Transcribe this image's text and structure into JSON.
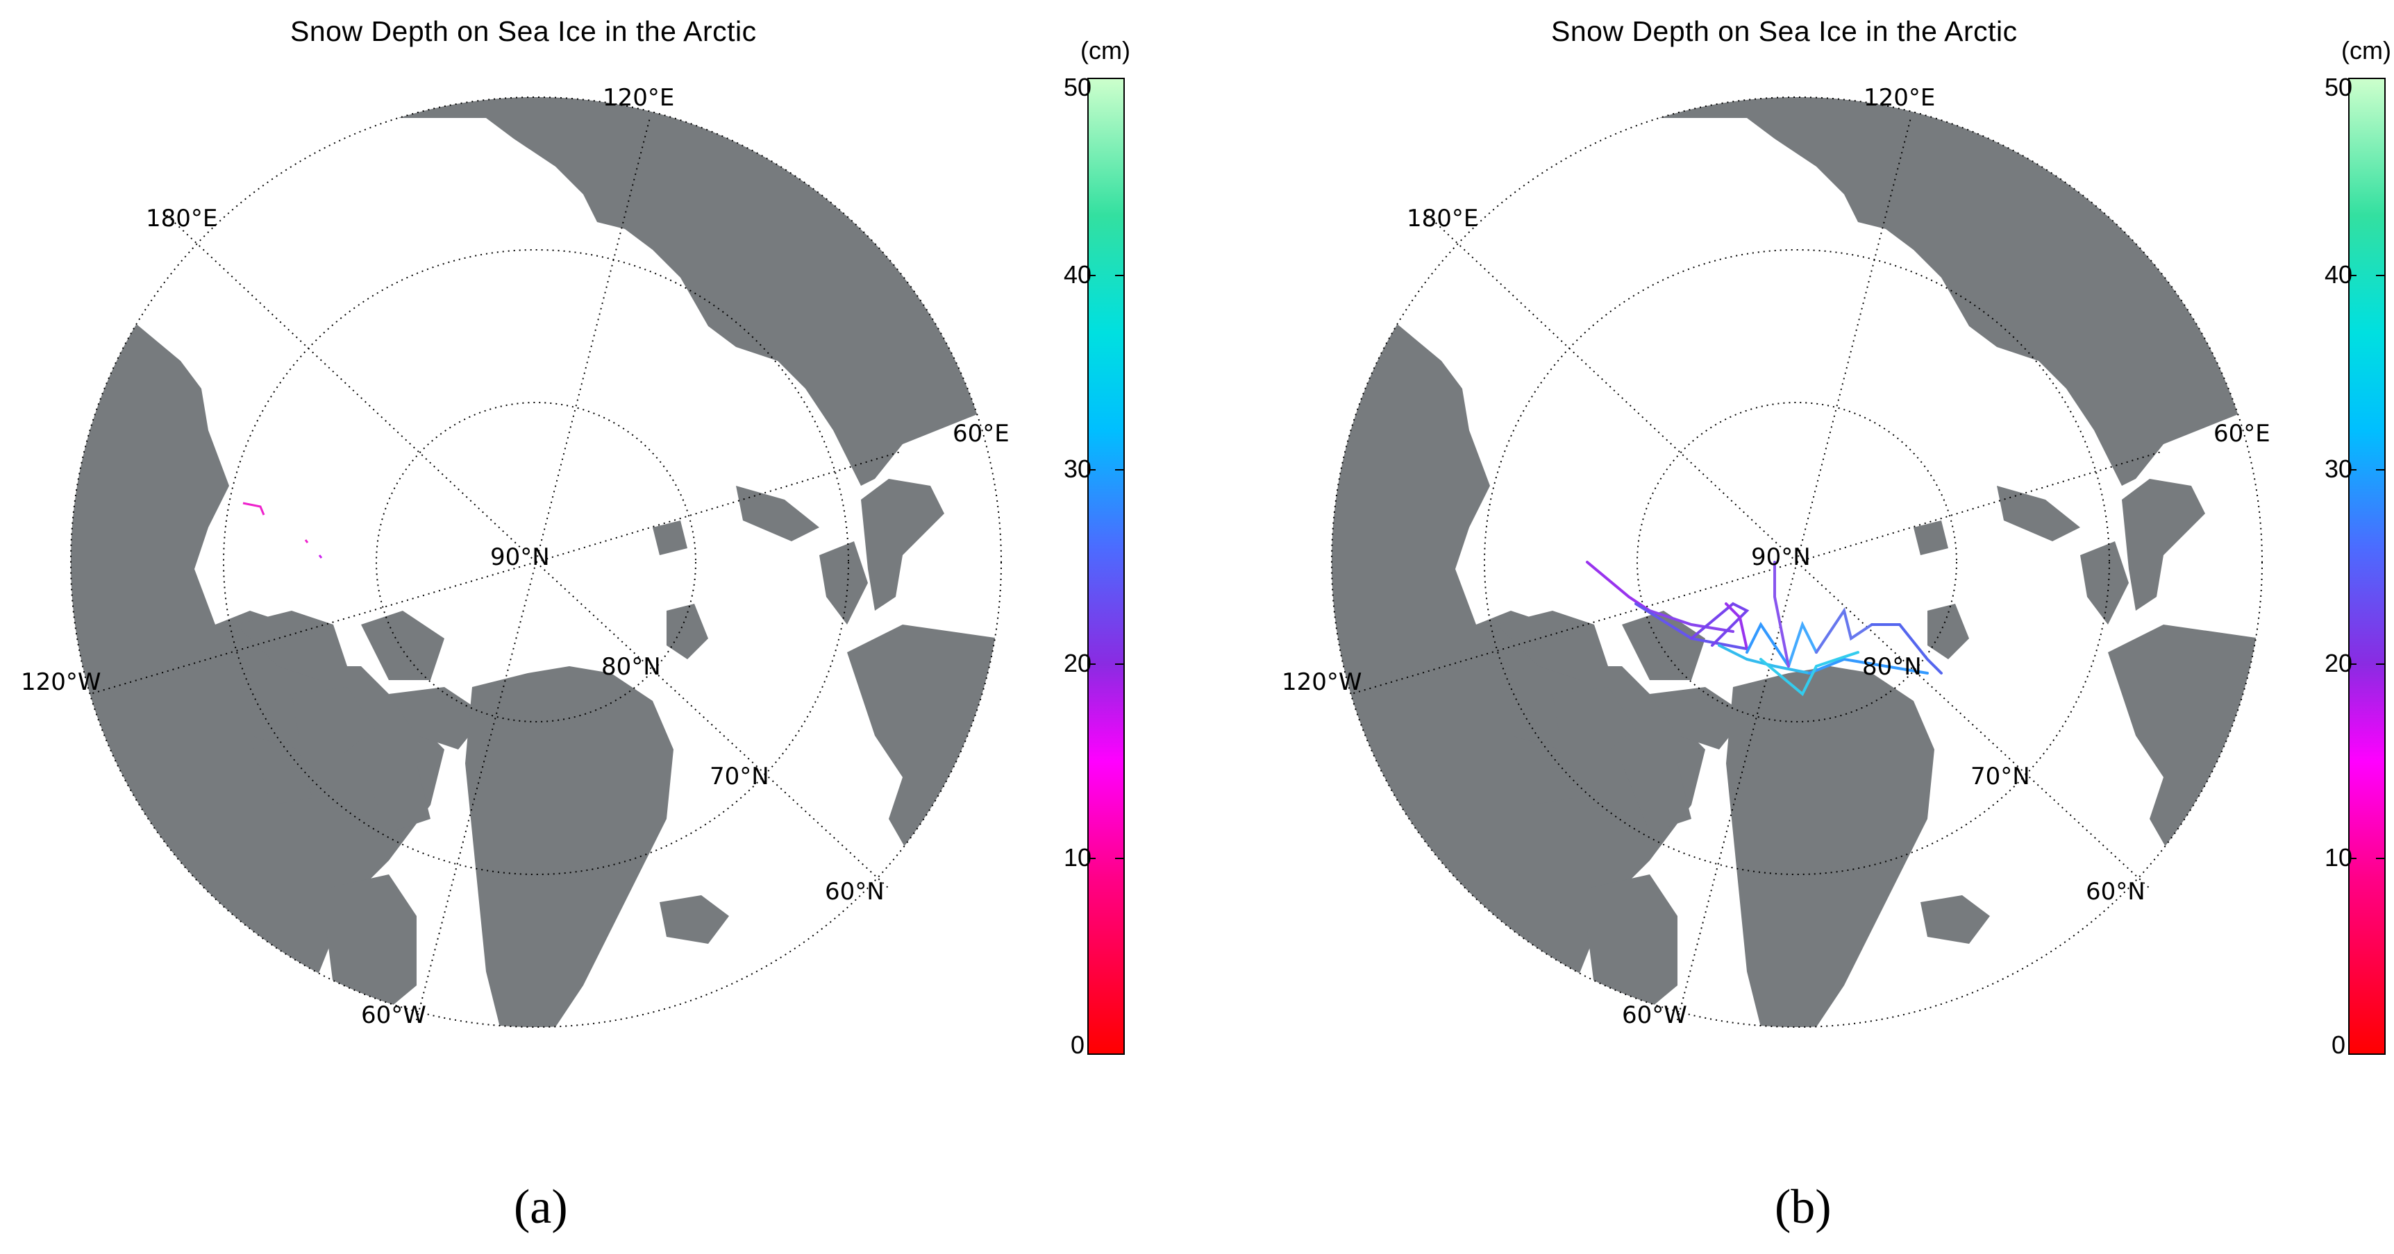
{
  "panels": [
    {
      "id": "a",
      "title": "Snow Depth on Sea Ice in the Arctic",
      "caption": "(a)",
      "meridian_labels": [
        "120°E",
        "180°E",
        "60°E",
        "120°W",
        "60°W"
      ],
      "parallel_labels": [
        "90°N",
        "80°N",
        "70°N",
        "60°N"
      ],
      "colorbar": {
        "unit": "(cm)",
        "ticks": [
          "50",
          "40",
          "30",
          "20",
          "10",
          "0"
        ]
      }
    },
    {
      "id": "b",
      "title": "Snow Depth on Sea Ice in the Arctic",
      "caption": "(b)",
      "meridian_labels": [
        "120°E",
        "180°E",
        "60°E",
        "120°W",
        "60°W"
      ],
      "parallel_labels": [
        "90°N",
        "80°N",
        "70°N",
        "60°N"
      ],
      "colorbar": {
        "unit": "(cm)",
        "ticks": [
          "50",
          "40",
          "30",
          "20",
          "10",
          "0"
        ]
      }
    }
  ],
  "colors": {
    "land": "#777b7e",
    "ocean": "#ffffff",
    "graticule": "#000000"
  },
  "colorbar_range_cm": [
    0,
    50
  ]
}
